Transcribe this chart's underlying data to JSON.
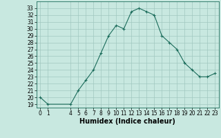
{
  "x": [
    0,
    1,
    4,
    5,
    6,
    7,
    8,
    9,
    10,
    11,
    12,
    13,
    14,
    15,
    16,
    17,
    18,
    19,
    20,
    21,
    22,
    23
  ],
  "y": [
    20,
    19,
    19,
    21,
    22.5,
    24,
    26.5,
    29,
    30.5,
    30,
    32.5,
    33,
    32.5,
    32,
    29,
    28,
    27,
    25,
    24,
    23,
    23,
    23.5
  ],
  "line_color": "#1a6b5a",
  "marker_color": "#1a6b5a",
  "bg_color": "#c8e8e0",
  "grid_color": "#a0c8c0",
  "xlabel": "Humidex (Indice chaleur)",
  "ylim": [
    18.5,
    34
  ],
  "xlim": [
    -0.5,
    23.5
  ],
  "yticks": [
    19,
    20,
    21,
    22,
    23,
    24,
    25,
    26,
    27,
    28,
    29,
    30,
    31,
    32,
    33
  ],
  "xticks": [
    0,
    1,
    4,
    5,
    6,
    7,
    8,
    9,
    10,
    11,
    12,
    13,
    14,
    15,
    16,
    17,
    18,
    19,
    20,
    21,
    22,
    23
  ],
  "tick_fontsize": 5.5,
  "xlabel_fontsize": 7.0
}
